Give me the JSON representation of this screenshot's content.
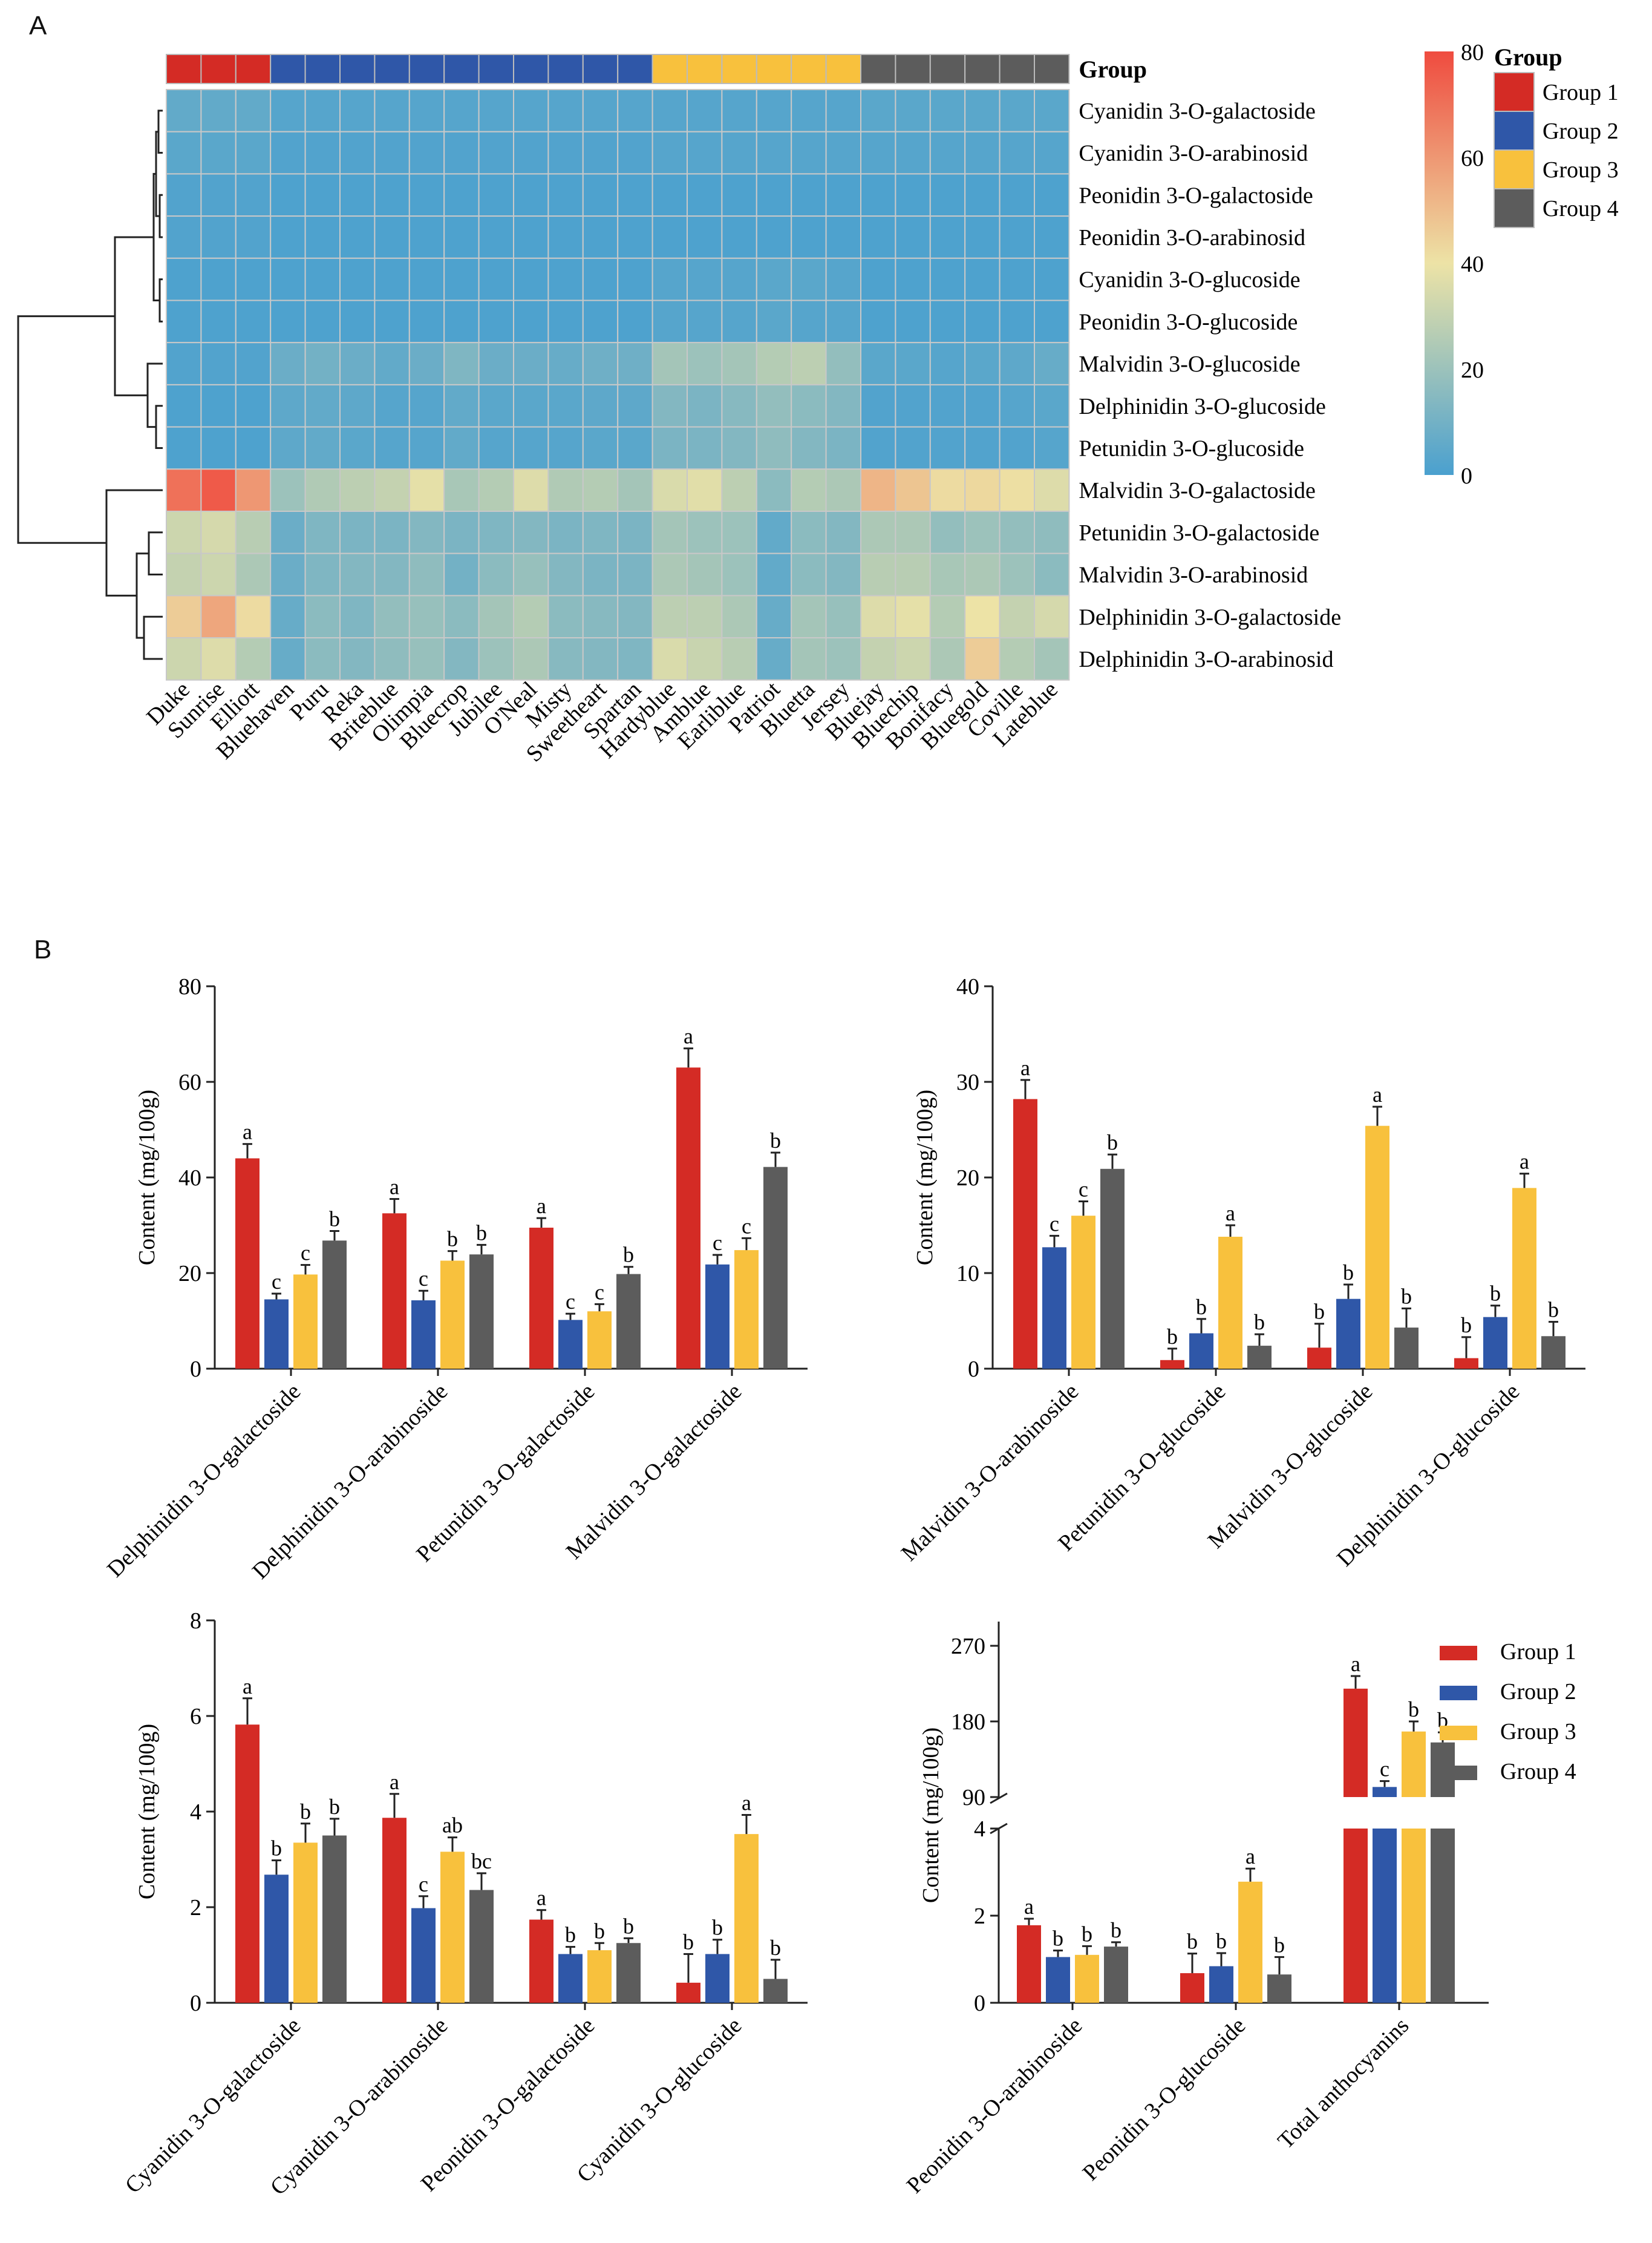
{
  "panels": {
    "a": "A",
    "b": "B"
  },
  "colors": {
    "group1": "#d42b25",
    "group2": "#2f57a8",
    "group3": "#f8c13d",
    "group4": "#5c5c5c",
    "heat_low": "#4aa0cf",
    "heat_mid": "#ede3a6",
    "heat_high": "#ef4b3f"
  },
  "chart_data": [
    {
      "type": "heatmap",
      "panel": "A",
      "annotation_title": "Group",
      "legend_title": "Group",
      "group_legend": [
        "Group 1",
        "Group 2",
        "Group 3",
        "Group 4"
      ],
      "colorbar": {
        "min": 0,
        "max": 80,
        "ticks": [
          0,
          20,
          40,
          60,
          80
        ]
      },
      "columns": [
        "Duke",
        "Sunrise",
        "Elliott",
        "Bluehaven",
        "Puru",
        "Reka",
        "Briteblue",
        "Olimpia",
        "Bluecrop",
        "Jubilee",
        "O'Neal",
        "Misty",
        "Sweetheart",
        "Spartan",
        "Hardyblue",
        "Amblue",
        "Earliblue",
        "Patriot",
        "Bluetta",
        "Jersey",
        "Bluejay",
        "Bluechip",
        "Bonifacy",
        "Bluegold",
        "Coville",
        "Lateblue"
      ],
      "column_groups": [
        1,
        1,
        1,
        2,
        2,
        2,
        2,
        2,
        2,
        2,
        2,
        2,
        2,
        2,
        3,
        3,
        3,
        3,
        3,
        3,
        4,
        4,
        4,
        4,
        4,
        4
      ],
      "rows": [
        "Cyanidin 3-O-galactoside",
        "Cyanidin 3-O-arabinosid",
        "Peonidin 3-O-galactoside",
        "Peonidin 3-O-arabinosid",
        "Cyanidin 3-O-glucoside",
        "Peonidin 3-O-glucoside",
        "Malvidin 3-O-glucoside",
        "Delphinidin 3-O-glucoside",
        "Petunidin 3-O-glucoside",
        "Malvidin 3-O-galactoside",
        "Petunidin 3-O-galactoside",
        "Malvidin 3-O-arabinosid",
        "Delphinidin 3-O-galactoside",
        "Delphinidin 3-O-arabinosid"
      ],
      "values": [
        [
          6,
          6,
          6,
          3,
          3,
          3,
          3,
          3,
          3,
          3,
          3,
          3,
          3,
          3,
          3,
          3,
          3,
          3,
          3,
          3,
          4,
          4,
          4,
          4,
          4,
          4
        ],
        [
          4,
          4,
          4,
          2,
          2,
          2,
          2,
          2,
          2,
          2,
          2,
          2,
          2,
          2,
          3,
          3,
          3,
          3,
          3,
          3,
          3,
          3,
          3,
          3,
          3,
          3
        ],
        [
          2,
          2,
          2,
          1,
          1,
          1,
          1,
          1,
          1,
          1,
          1,
          1,
          1,
          1,
          1,
          1,
          1,
          1,
          1,
          1,
          1,
          1,
          1,
          1,
          1,
          1
        ],
        [
          2,
          2,
          2,
          1,
          1,
          1,
          1,
          1,
          1,
          1,
          1,
          1,
          1,
          1,
          1,
          1,
          1,
          1,
          1,
          1,
          1,
          1,
          1,
          1,
          1,
          1
        ],
        [
          1,
          1,
          1,
          1,
          1,
          1,
          1,
          1,
          1,
          1,
          1,
          1,
          1,
          1,
          3,
          3,
          3,
          4,
          4,
          3,
          1,
          1,
          1,
          1,
          1,
          1
        ],
        [
          1,
          1,
          1,
          1,
          1,
          1,
          1,
          1,
          1,
          1,
          1,
          1,
          1,
          1,
          3,
          3,
          3,
          4,
          3,
          3,
          1,
          1,
          1,
          1,
          1,
          1
        ],
        [
          2,
          2,
          2,
          8,
          10,
          8,
          6,
          8,
          13,
          8,
          8,
          7,
          9,
          9,
          22,
          20,
          22,
          26,
          28,
          18,
          4,
          4,
          3,
          4,
          5,
          7
        ],
        [
          1,
          1,
          1,
          5,
          6,
          5,
          3,
          3,
          6,
          4,
          4,
          4,
          5,
          5,
          14,
          12,
          15,
          18,
          16,
          14,
          2,
          2,
          2,
          2,
          3,
          4
        ],
        [
          1,
          1,
          1,
          5,
          6,
          4,
          3,
          3,
          6,
          3,
          3,
          3,
          4,
          4,
          12,
          12,
          14,
          17,
          14,
          12,
          2,
          2,
          2,
          2,
          2,
          3
        ],
        [
          70,
          76,
          60,
          20,
          25,
          28,
          30,
          38,
          23,
          26,
          36,
          25,
          26,
          22,
          35,
          37,
          28,
          16,
          26,
          24,
          52,
          48,
          42,
          43,
          41,
          36
        ],
        [
          32,
          34,
          27,
          8,
          13,
          12,
          12,
          14,
          12,
          13,
          14,
          12,
          13,
          12,
          22,
          20,
          20,
          6,
          16,
          14,
          24,
          24,
          18,
          20,
          18,
          17
        ],
        [
          30,
          32,
          24,
          8,
          13,
          14,
          14,
          17,
          10,
          16,
          19,
          14,
          12,
          12,
          24,
          22,
          20,
          6,
          16,
          14,
          27,
          27,
          23,
          24,
          20,
          16
        ],
        [
          46,
          56,
          42,
          7,
          16,
          13,
          18,
          19,
          16,
          22,
          26,
          16,
          15,
          14,
          28,
          28,
          24,
          7,
          22,
          19,
          36,
          38,
          26,
          40,
          30,
          34
        ],
        [
          32,
          36,
          26,
          7,
          16,
          14,
          17,
          19,
          14,
          20,
          24,
          15,
          14,
          13,
          35,
          31,
          27,
          7,
          22,
          20,
          30,
          32,
          24,
          46,
          26,
          22
        ]
      ],
      "row_dendrogram": "hierarchical clustering"
    },
    {
      "type": "bar",
      "panel": "B1",
      "ylabel": "Content (mg/100g)",
      "ylim": [
        0,
        80
      ],
      "yticks": [
        0,
        20,
        40,
        60,
        80
      ],
      "categories": [
        "Delphinidin 3-O-galactoside",
        "Delphinidin 3-O-arabinoside",
        "Petunidin 3-O-galactoside",
        "Malvidin 3-O-galactoside"
      ],
      "series": [
        {
          "name": "Group 1",
          "values": [
            44.0,
            32.5,
            29.5,
            63.0
          ],
          "errors": [
            3,
            3,
            2,
            4
          ],
          "letters": [
            "a",
            "a",
            "a",
            "a"
          ]
        },
        {
          "name": "Group 2",
          "values": [
            14.5,
            14.3,
            10.2,
            21.8
          ],
          "errors": [
            1.2,
            2,
            1.3,
            2
          ],
          "letters": [
            "c",
            "c",
            "c",
            "c"
          ]
        },
        {
          "name": "Group 3",
          "values": [
            19.7,
            22.6,
            12.0,
            24.8
          ],
          "errors": [
            2,
            2,
            1.5,
            2.5
          ],
          "letters": [
            "c",
            "b",
            "c",
            "c"
          ]
        },
        {
          "name": "Group 4",
          "values": [
            26.8,
            23.9,
            19.8,
            42.2
          ],
          "errors": [
            2,
            2,
            1.5,
            3
          ],
          "letters": [
            "b",
            "b",
            "b",
            "b"
          ]
        }
      ]
    },
    {
      "type": "bar",
      "panel": "B2",
      "ylabel": "Content (mg/100g)",
      "ylim": [
        0,
        40
      ],
      "yticks": [
        0,
        10,
        20,
        30,
        40
      ],
      "categories": [
        "Malvidin 3-O-arabinoside",
        "Petunidin 3-O-glucoside",
        "Malvidin 3-O-glucoside",
        "Delphinidin 3-O-glucoside"
      ],
      "series": [
        {
          "name": "Group 1",
          "values": [
            28.2,
            0.9,
            2.2,
            1.1
          ],
          "errors": [
            2,
            1.2,
            2.5,
            2.2
          ],
          "letters": [
            "a",
            "b",
            "b",
            "b"
          ]
        },
        {
          "name": "Group 2",
          "values": [
            12.7,
            3.7,
            7.3,
            5.4
          ],
          "errors": [
            1.2,
            1.5,
            1.5,
            1.2
          ],
          "letters": [
            "c",
            "b",
            "b",
            "b"
          ]
        },
        {
          "name": "Group 3",
          "values": [
            16.0,
            13.8,
            25.4,
            18.9
          ],
          "errors": [
            1.5,
            1.2,
            2,
            1.5
          ],
          "letters": [
            "c",
            "a",
            "a",
            "a"
          ]
        },
        {
          "name": "Group 4",
          "values": [
            20.9,
            2.4,
            4.3,
            3.4
          ],
          "errors": [
            1.5,
            1.2,
            2,
            1.5
          ],
          "letters": [
            "b",
            "b",
            "b",
            "b"
          ]
        }
      ]
    },
    {
      "type": "bar",
      "panel": "B3",
      "ylabel": "Content (mg/100g)",
      "ylim": [
        0,
        8
      ],
      "yticks": [
        0,
        2,
        4,
        6,
        8
      ],
      "categories": [
        "Cyanidin 3-O-galactoside",
        "Cyanidin 3-O-arabinoside",
        "Peonidin 3-O-galactoside",
        "Cyanidin 3-O-glucoside"
      ],
      "series": [
        {
          "name": "Group 1",
          "values": [
            5.82,
            3.87,
            1.74,
            0.42
          ],
          "errors": [
            0.55,
            0.5,
            0.2,
            0.6
          ],
          "letters": [
            "a",
            "a",
            "a",
            "b"
          ]
        },
        {
          "name": "Group 2",
          "values": [
            2.68,
            1.98,
            1.02,
            1.02
          ],
          "errors": [
            0.3,
            0.25,
            0.15,
            0.3
          ],
          "letters": [
            "b",
            "c",
            "b",
            "b"
          ]
        },
        {
          "name": "Group 3",
          "values": [
            3.35,
            3.16,
            1.1,
            3.53
          ],
          "errors": [
            0.4,
            0.3,
            0.15,
            0.4
          ],
          "letters": [
            "b",
            "ab",
            "b",
            "a"
          ]
        },
        {
          "name": "Group 4",
          "values": [
            3.5,
            2.36,
            1.25,
            0.5
          ],
          "errors": [
            0.35,
            0.35,
            0.1,
            0.4
          ],
          "letters": [
            "b",
            "bc",
            "b",
            "b"
          ]
        }
      ]
    },
    {
      "type": "bar",
      "panel": "B4",
      "ylabel": "Content (mg/100g)",
      "axis_break": {
        "lower_ylim": [
          0,
          4
        ],
        "lower_ticks": [
          0,
          2,
          4
        ],
        "upper_ylim": [
          90,
          270
        ],
        "upper_ticks": [
          90,
          180,
          270
        ]
      },
      "categories": [
        "Peonidin 3-O-arabinoside",
        "Peonidin 3-O-glucoside",
        "Total anthocyanins"
      ],
      "legend": [
        "Group 1",
        "Group 2",
        "Group 3",
        "Group 4"
      ],
      "series": [
        {
          "name": "Group 1",
          "values": [
            1.78,
            0.68,
            219
          ],
          "errors": [
            0.15,
            0.45,
            15
          ],
          "letters": [
            "a",
            "b",
            "a"
          ]
        },
        {
          "name": "Group 2",
          "values": [
            1.05,
            0.84,
            102
          ],
          "errors": [
            0.15,
            0.3,
            7
          ],
          "letters": [
            "b",
            "b",
            "c"
          ]
        },
        {
          "name": "Group 3",
          "values": [
            1.1,
            2.78,
            168
          ],
          "errors": [
            0.2,
            0.3,
            12
          ],
          "letters": [
            "b",
            "a",
            "b"
          ]
        },
        {
          "name": "Group 4",
          "values": [
            1.29,
            0.65,
            155
          ],
          "errors": [
            0.1,
            0.4,
            12
          ],
          "letters": [
            "b",
            "b",
            "b"
          ]
        }
      ]
    }
  ]
}
